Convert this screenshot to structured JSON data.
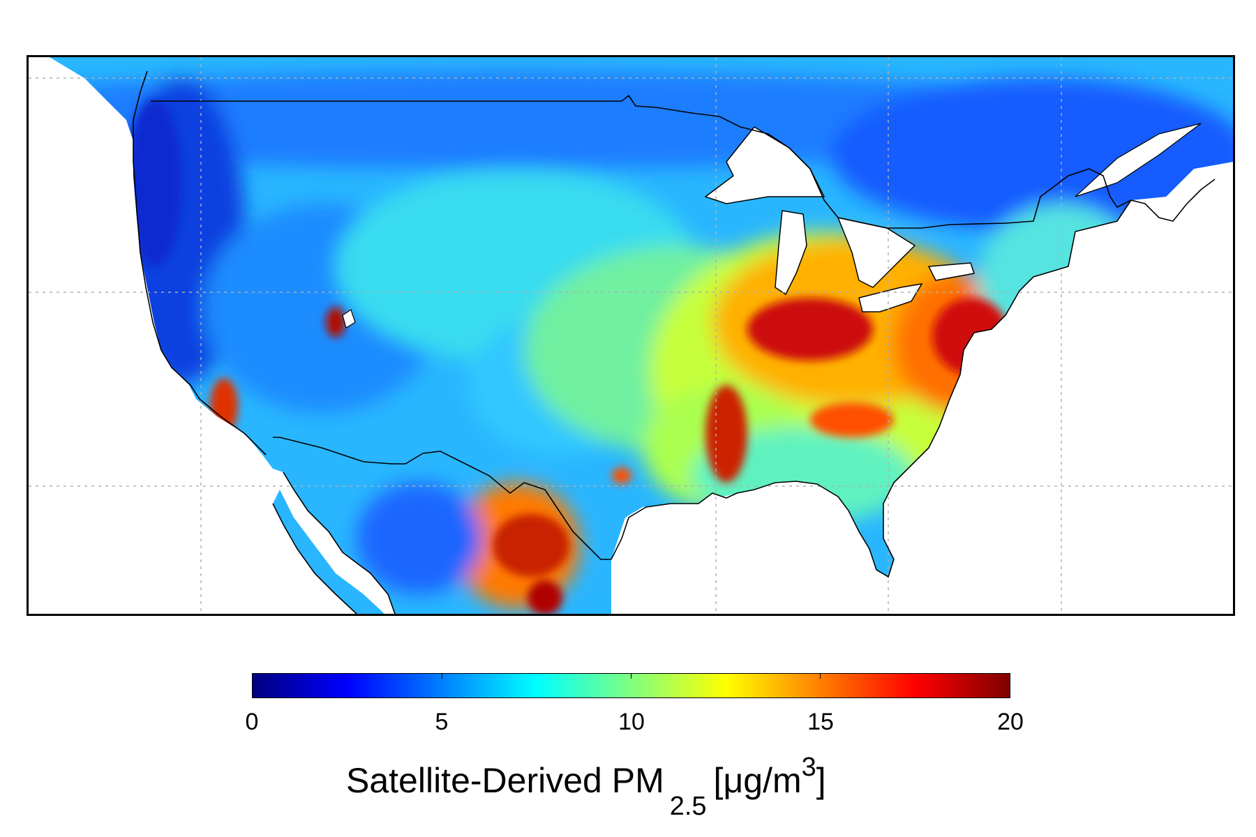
{
  "title": {
    "main": "Satellite-Derived PM",
    "sub": "2.5",
    "unit_open": "[",
    "unit_mu": "μ",
    "unit_rest": "g/m",
    "unit_sup": "3",
    "unit_close": "]"
  },
  "colorbar": {
    "min": 0,
    "max": 20,
    "ticks": [
      "0",
      "5",
      "10",
      "15",
      "20"
    ],
    "colormap": "jet",
    "colors": [
      "#00007f",
      "#0000ff",
      "#007fff",
      "#00ffff",
      "#7fff7f",
      "#ffff00",
      "#ff7f00",
      "#ff0000",
      "#7f0000"
    ]
  },
  "map": {
    "region": "Contiguous United States",
    "land_color": "#29a6ff",
    "water_color": "#ffffff",
    "border_color": "#000000",
    "grid_color": "#b0b0b0"
  }
}
